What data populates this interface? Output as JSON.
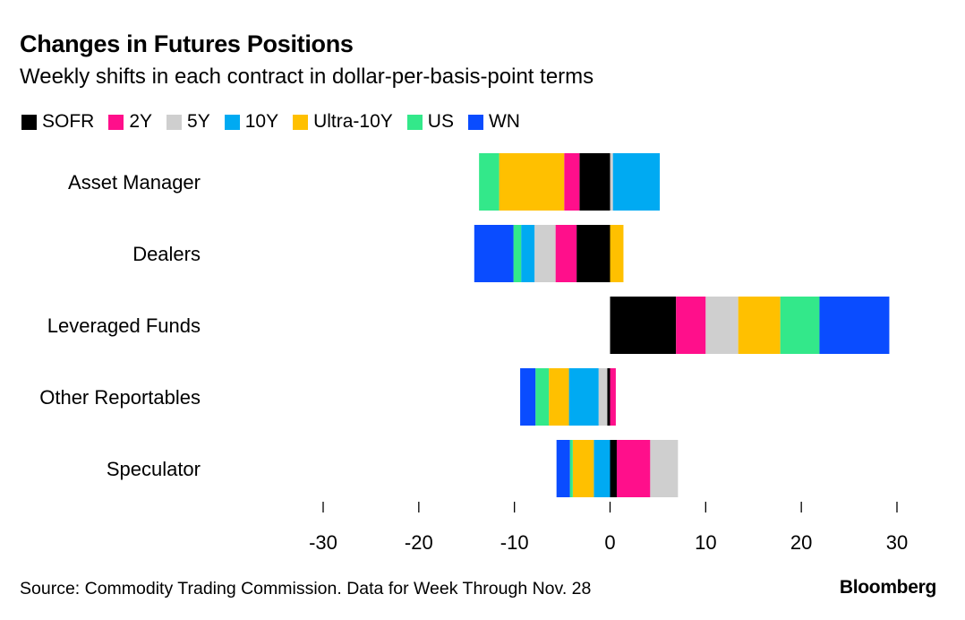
{
  "header": {
    "title": "Changes in Futures Positions",
    "subtitle": "Weekly shifts in each contract in dollar-per-basis-point terms"
  },
  "footer": {
    "source": "Source: Commodity Trading Commission. Data for Week Through Nov. 28",
    "brand": "Bloomberg"
  },
  "chart_data": {
    "type": "bar",
    "orientation": "horizontal",
    "stacked": true,
    "title": "Changes in Futures Positions",
    "subtitle": "Weekly shifts in each contract in dollar-per-basis-point terms",
    "categories": [
      "Asset Manager",
      "Dealers",
      "Leveraged Funds",
      "Other Reportables",
      "Speculator"
    ],
    "xlim": [
      -30,
      30
    ],
    "xticks": [
      -30,
      -20,
      -10,
      0,
      10,
      20,
      30
    ],
    "xlabel": "",
    "ylabel": "",
    "legend_position": "top-left",
    "grid": false,
    "series": [
      {
        "name": "SOFR",
        "color": "#000000",
        "values": [
          -3.2,
          -3.5,
          6.9,
          -0.3,
          0.7
        ]
      },
      {
        "name": "2Y",
        "color": "#ff0f8b",
        "values": [
          -1.6,
          -2.2,
          3.1,
          0.6,
          3.5
        ]
      },
      {
        "name": "5Y",
        "color": "#cfcfcf",
        "values": [
          0.3,
          -2.2,
          3.4,
          -0.9,
          2.9
        ]
      },
      {
        "name": "10Y",
        "color": "#00aaf2",
        "values": [
          4.9,
          -1.4,
          0.0,
          -3.1,
          -1.7
        ]
      },
      {
        "name": "Ultra-10Y",
        "color": "#ffc000",
        "values": [
          -6.8,
          1.4,
          4.4,
          -2.1,
          -2.2
        ]
      },
      {
        "name": "US",
        "color": "#33e88a",
        "values": [
          -2.1,
          -0.8,
          4.1,
          -1.4,
          -0.3
        ]
      },
      {
        "name": "WN",
        "color": "#0a4cff",
        "values": [
          0.0,
          -4.1,
          7.3,
          -1.6,
          -1.4
        ]
      }
    ]
  }
}
